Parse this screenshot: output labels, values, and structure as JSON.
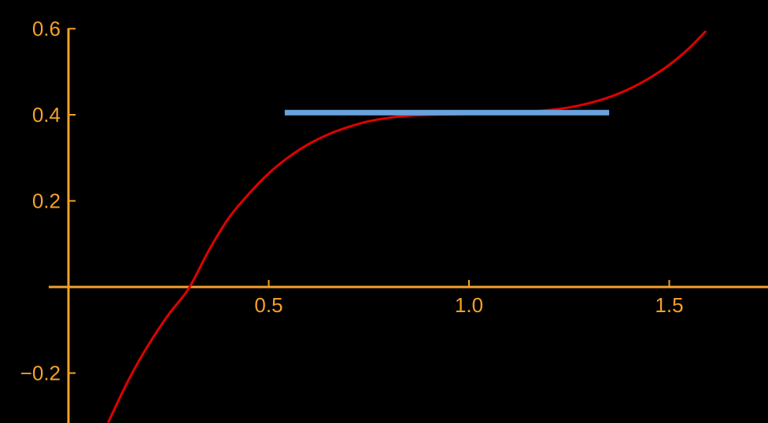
{
  "chart_data": {
    "type": "line",
    "xlim": [
      -0.01,
      1.77
    ],
    "ylim": [
      -0.31,
      0.62
    ],
    "grid": false,
    "x_ticks": [
      {
        "value": 0.5,
        "label": "0.5"
      },
      {
        "value": 1.0,
        "label": "1.0"
      },
      {
        "value": 1.5,
        "label": "1.5"
      }
    ],
    "y_ticks": [
      {
        "value": 0.6,
        "label": "0.6"
      },
      {
        "value": 0.4,
        "label": "0.4"
      },
      {
        "value": 0.2,
        "label": "0.2"
      },
      {
        "value": -0.2,
        "label": "−0.2"
      }
    ],
    "series": [
      {
        "color": "#e00000",
        "x": [
          0.1,
          0.15,
          0.2,
          0.25,
          0.3,
          0.35,
          0.4,
          0.45,
          0.5,
          0.55,
          0.6,
          0.65,
          0.7,
          0.75,
          0.8,
          0.85,
          0.9,
          0.95,
          1.0,
          1.05,
          1.1,
          1.15,
          1.2,
          1.25,
          1.3,
          1.35,
          1.4,
          1.45,
          1.5,
          1.55,
          1.59
        ],
        "y": [
          -0.313,
          -0.216,
          -0.134,
          -0.064,
          -0.004,
          0.084,
          0.16,
          0.216,
          0.264,
          0.302,
          0.332,
          0.355,
          0.372,
          0.385,
          0.393,
          0.398,
          0.4,
          0.401,
          0.402,
          0.403,
          0.404,
          0.407,
          0.411,
          0.417,
          0.427,
          0.441,
          0.46,
          0.485,
          0.516,
          0.555,
          0.593
        ]
      }
    ],
    "reference_line": {
      "color": "#6aa2dd",
      "y": 0.405,
      "x_start": 0.54,
      "x_end": 1.35
    },
    "axis_color": "#f4a02c"
  }
}
